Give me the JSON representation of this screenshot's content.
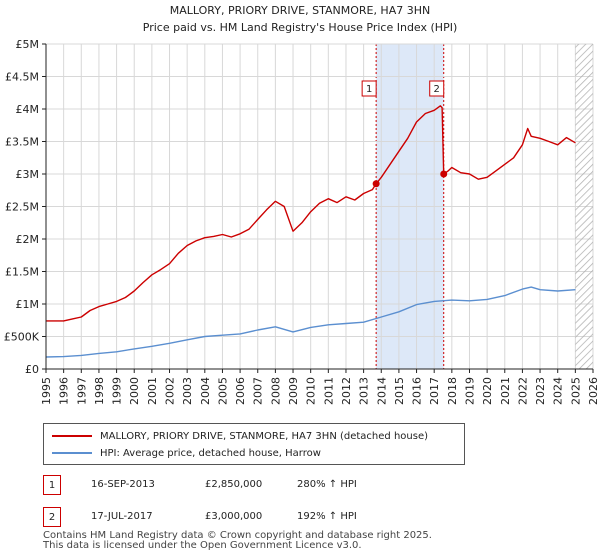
{
  "chart_data": {
    "type": "line",
    "title": "MALLORY, PRIORY DRIVE, STANMORE, HA7 3HN",
    "subtitle": "Price paid vs. HM Land Registry's House Price Index (HPI)",
    "xlim": [
      1995,
      2026
    ],
    "ylim": [
      0,
      5000000
    ],
    "x_ticks": [
      "1995",
      "1996",
      "1997",
      "1998",
      "1999",
      "2000",
      "2001",
      "2002",
      "2003",
      "2004",
      "2005",
      "2006",
      "2007",
      "2008",
      "2009",
      "2010",
      "2011",
      "2012",
      "2013",
      "2014",
      "2015",
      "2016",
      "2017",
      "2018",
      "2019",
      "2020",
      "2021",
      "2022",
      "2023",
      "2024",
      "2025",
      "2026"
    ],
    "y_ticks": [
      {
        "value": 0,
        "label": "£0"
      },
      {
        "value": 500000,
        "label": "£500K"
      },
      {
        "value": 1000000,
        "label": "£1M"
      },
      {
        "value": 1500000,
        "label": "£1.5M"
      },
      {
        "value": 2000000,
        "label": "£2M"
      },
      {
        "value": 2500000,
        "label": "£2.5M"
      },
      {
        "value": 3000000,
        "label": "£3M"
      },
      {
        "value": 3500000,
        "label": "£3.5M"
      },
      {
        "value": 4000000,
        "label": "£4M"
      },
      {
        "value": 4500000,
        "label": "£4.5M"
      },
      {
        "value": 5000000,
        "label": "£5M"
      }
    ],
    "shaded_band": [
      2013.71,
      2017.54
    ],
    "forecast_from": 2025.0,
    "grid": true,
    "series": [
      {
        "name": "MALLORY, PRIORY DRIVE, STANMORE, HA7 3HN (detached house)",
        "color": "#cc0000",
        "points": [
          [
            1995.0,
            740000
          ],
          [
            1996.0,
            740000
          ],
          [
            1996.5,
            770000
          ],
          [
            1997.0,
            800000
          ],
          [
            1997.5,
            900000
          ],
          [
            1998.0,
            960000
          ],
          [
            1998.5,
            1000000
          ],
          [
            1999.0,
            1040000
          ],
          [
            1999.5,
            1100000
          ],
          [
            2000.0,
            1200000
          ],
          [
            2000.5,
            1330000
          ],
          [
            2001.0,
            1450000
          ],
          [
            2001.5,
            1530000
          ],
          [
            2002.0,
            1620000
          ],
          [
            2002.5,
            1780000
          ],
          [
            2003.0,
            1900000
          ],
          [
            2003.5,
            1970000
          ],
          [
            2004.0,
            2020000
          ],
          [
            2004.5,
            2040000
          ],
          [
            2005.0,
            2070000
          ],
          [
            2005.5,
            2030000
          ],
          [
            2006.0,
            2080000
          ],
          [
            2006.5,
            2150000
          ],
          [
            2007.0,
            2300000
          ],
          [
            2007.5,
            2450000
          ],
          [
            2008.0,
            2580000
          ],
          [
            2008.5,
            2500000
          ],
          [
            2009.0,
            2120000
          ],
          [
            2009.5,
            2250000
          ],
          [
            2010.0,
            2420000
          ],
          [
            2010.5,
            2550000
          ],
          [
            2011.0,
            2620000
          ],
          [
            2011.5,
            2560000
          ],
          [
            2012.0,
            2650000
          ],
          [
            2012.5,
            2600000
          ],
          [
            2013.0,
            2700000
          ],
          [
            2013.5,
            2760000
          ],
          [
            2013.71,
            2850000
          ],
          [
            2014.0,
            2950000
          ],
          [
            2014.5,
            3150000
          ],
          [
            2015.0,
            3350000
          ],
          [
            2015.5,
            3550000
          ],
          [
            2016.0,
            3800000
          ],
          [
            2016.5,
            3930000
          ],
          [
            2017.0,
            3980000
          ],
          [
            2017.35,
            4050000
          ],
          [
            2017.45,
            4020000
          ],
          [
            2017.54,
            3000000
          ],
          [
            2017.8,
            3050000
          ],
          [
            2018.0,
            3100000
          ],
          [
            2018.5,
            3020000
          ],
          [
            2019.0,
            3000000
          ],
          [
            2019.5,
            2920000
          ],
          [
            2020.0,
            2950000
          ],
          [
            2020.5,
            3050000
          ],
          [
            2021.0,
            3150000
          ],
          [
            2021.5,
            3250000
          ],
          [
            2022.0,
            3450000
          ],
          [
            2022.3,
            3700000
          ],
          [
            2022.5,
            3580000
          ],
          [
            2023.0,
            3550000
          ],
          [
            2023.5,
            3500000
          ],
          [
            2024.0,
            3450000
          ],
          [
            2024.5,
            3560000
          ],
          [
            2025.0,
            3480000
          ]
        ]
      },
      {
        "name": "HPI: Average price, detached house, Harrow",
        "color": "#5b8fd0",
        "points": [
          [
            1995.0,
            185000
          ],
          [
            1996.0,
            190000
          ],
          [
            1997.0,
            210000
          ],
          [
            1998.0,
            240000
          ],
          [
            1999.0,
            265000
          ],
          [
            2000.0,
            310000
          ],
          [
            2001.0,
            350000
          ],
          [
            2002.0,
            395000
          ],
          [
            2003.0,
            450000
          ],
          [
            2004.0,
            500000
          ],
          [
            2005.0,
            520000
          ],
          [
            2006.0,
            540000
          ],
          [
            2007.0,
            600000
          ],
          [
            2008.0,
            650000
          ],
          [
            2009.0,
            570000
          ],
          [
            2010.0,
            640000
          ],
          [
            2011.0,
            680000
          ],
          [
            2012.0,
            700000
          ],
          [
            2013.0,
            720000
          ],
          [
            2014.0,
            800000
          ],
          [
            2015.0,
            880000
          ],
          [
            2016.0,
            990000
          ],
          [
            2017.0,
            1040000
          ],
          [
            2018.0,
            1060000
          ],
          [
            2019.0,
            1050000
          ],
          [
            2020.0,
            1070000
          ],
          [
            2021.0,
            1130000
          ],
          [
            2022.0,
            1230000
          ],
          [
            2022.5,
            1260000
          ],
          [
            2023.0,
            1220000
          ],
          [
            2024.0,
            1200000
          ],
          [
            2025.0,
            1220000
          ]
        ]
      }
    ],
    "markers": [
      {
        "label": "1",
        "x": 2013.71,
        "y": 2850000
      },
      {
        "label": "2",
        "x": 2017.54,
        "y": 3000000
      }
    ]
  },
  "legend": {
    "property_label": "MALLORY, PRIORY DRIVE, STANMORE, HA7 3HN (detached house)",
    "hpi_label": "HPI: Average price, detached house, Harrow"
  },
  "transactions": [
    {
      "num": "1",
      "date": "16-SEP-2013",
      "price": "£2,850,000",
      "hpi": "280% ↑ HPI"
    },
    {
      "num": "2",
      "date": "17-JUL-2017",
      "price": "£3,000,000",
      "hpi": "192% ↑ HPI"
    }
  ],
  "footer": {
    "line1": "Contains HM Land Registry data © Crown copyright and database right 2025.",
    "line2": "This data is licensed under the Open Government Licence v3.0."
  },
  "colors": {
    "property": "#cc0000",
    "hpi": "#5b8fd0",
    "band": "#dde8f8",
    "grid": "#d8d8d8"
  }
}
